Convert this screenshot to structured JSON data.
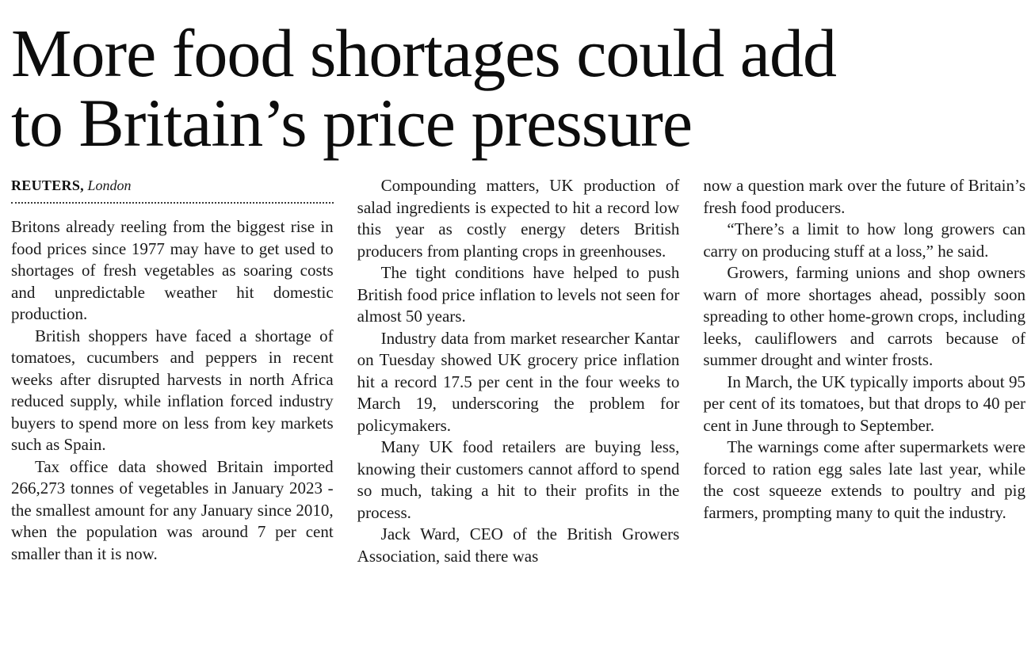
{
  "article": {
    "headline": {
      "line1": "More food shortages could add",
      "line2": "to Britain’s price pressure",
      "full": "More food shortages could add to Britain’s price pressure"
    },
    "byline": {
      "source": "REUTERS,",
      "location": "London"
    },
    "columns": [
      {
        "paragraphs": [
          "Britons already reeling from the biggest rise in food prices since 1977 may have to get used to shortages of fresh vegetables as soaring costs and unpredictable weather hit domestic production.",
          "British shoppers have faced a shortage of tomatoes, cucumbers and peppers in recent weeks after disrupted harvests in north Africa reduced supply, while inflation forced industry buyers to spend more on less from key markets such as Spain.",
          "Tax office data showed Britain imported 266,273 tonnes of vegetables in January 2023 - the smallest amount for any January since 2010, when the population was around 7 per cent smaller than it is now."
        ]
      },
      {
        "paragraphs": [
          "Compounding matters, UK production of salad ingredients is expected to hit a record low this year as costly energy deters British producers from planting crops in greenhouses.",
          "The tight conditions have helped to push British food price inflation to levels not seen for almost 50 years.",
          "Industry data from market researcher Kantar on Tuesday showed UK grocery price inflation hit a record 17.5 per cent in the four weeks to March 19, underscoring the problem for policymakers.",
          "Many UK food retailers are buying less, knowing their customers cannot afford to spend so much, taking a hit to their profits in the process.",
          "Jack Ward, CEO of the British Growers Association, said there was"
        ]
      },
      {
        "paragraphs": [
          "now a question mark over the future of Britain’s fresh food producers.",
          "“There’s a limit to how long growers can carry on producing stuff at a loss,” he said.",
          "Growers, farming unions and shop owners warn of more shortages ahead, possibly soon spreading to other home-grown crops, including leeks, cauliflowers and carrots because of summer drought and winter frosts.",
          "In March, the UK typically imports about 95 per cent of its tomatoes, but that drops to 40 per cent in June through to September.",
          "The warnings come after supermarkets were forced to ration egg sales late last year, while the cost squeeze extends to poultry and pig farmers, prompting many to quit the industry."
        ]
      }
    ]
  }
}
